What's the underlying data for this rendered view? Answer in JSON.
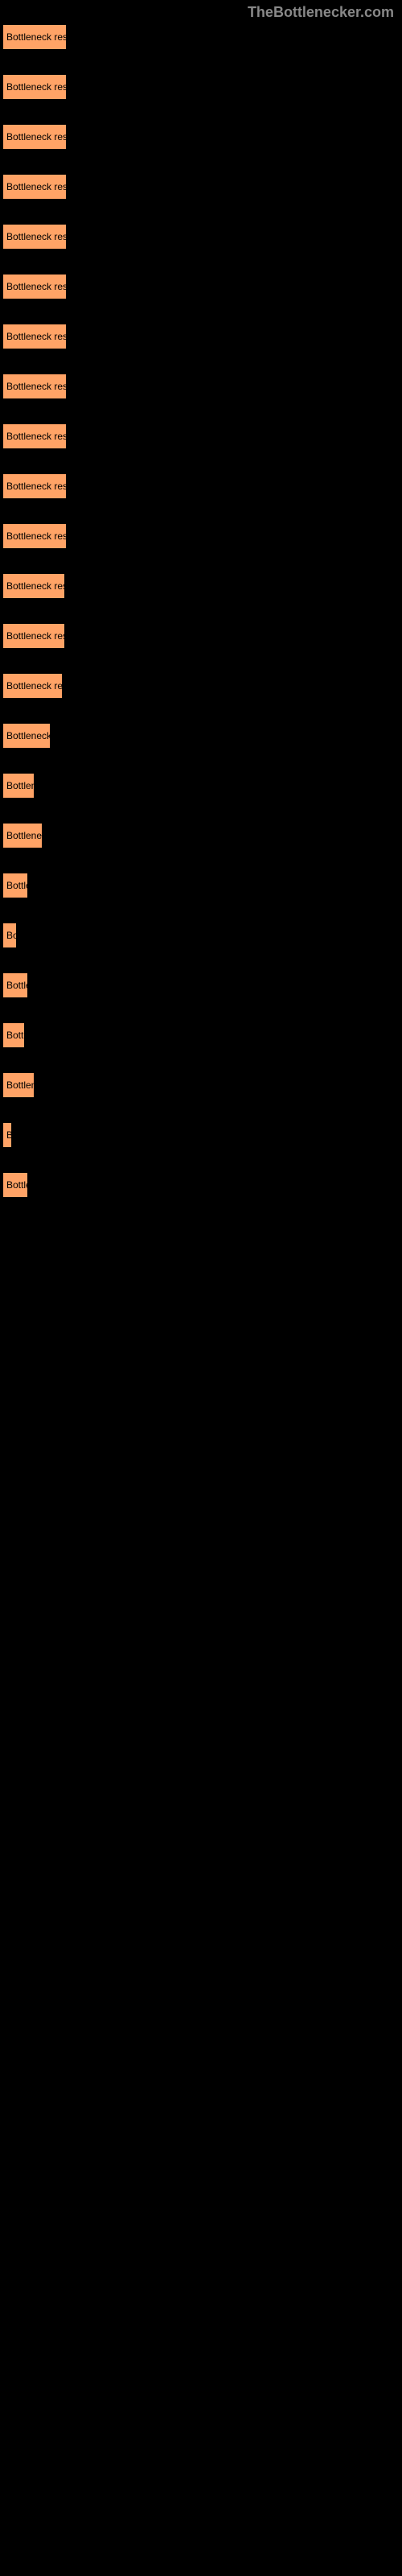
{
  "watermark": "TheBottlenecker.com",
  "buttons": [
    {
      "label": "Bottleneck result",
      "width": 80
    },
    {
      "label": "Bottleneck result",
      "width": 80
    },
    {
      "label": "Bottleneck result",
      "width": 80
    },
    {
      "label": "Bottleneck result",
      "width": 80
    },
    {
      "label": "Bottleneck result",
      "width": 80
    },
    {
      "label": "Bottleneck result",
      "width": 80
    },
    {
      "label": "Bottleneck result",
      "width": 80
    },
    {
      "label": "Bottleneck result",
      "width": 80
    },
    {
      "label": "Bottleneck result",
      "width": 80
    },
    {
      "label": "Bottleneck result",
      "width": 80
    },
    {
      "label": "Bottleneck result",
      "width": 80
    },
    {
      "label": "Bottleneck result",
      "width": 78
    },
    {
      "label": "Bottleneck result",
      "width": 78
    },
    {
      "label": "Bottleneck result",
      "width": 75
    },
    {
      "label": "Bottleneck re",
      "width": 60
    },
    {
      "label": "Bottlene",
      "width": 40
    },
    {
      "label": "Bottleneck",
      "width": 50
    },
    {
      "label": "Bottle",
      "width": 32
    },
    {
      "label": "Bo",
      "width": 18
    },
    {
      "label": "Bottle",
      "width": 32
    },
    {
      "label": "Bottl",
      "width": 28
    },
    {
      "label": "Bottlene",
      "width": 40
    },
    {
      "label": "B",
      "width": 12
    },
    {
      "label": "Bottle",
      "width": 32
    }
  ],
  "styles": {
    "background_color": "#000000",
    "button_bg_color": "#ffa366",
    "button_text_color": "#000000",
    "watermark_color": "#888888",
    "button_font_size": 12,
    "watermark_font_size": 18,
    "button_spacing": 30
  }
}
